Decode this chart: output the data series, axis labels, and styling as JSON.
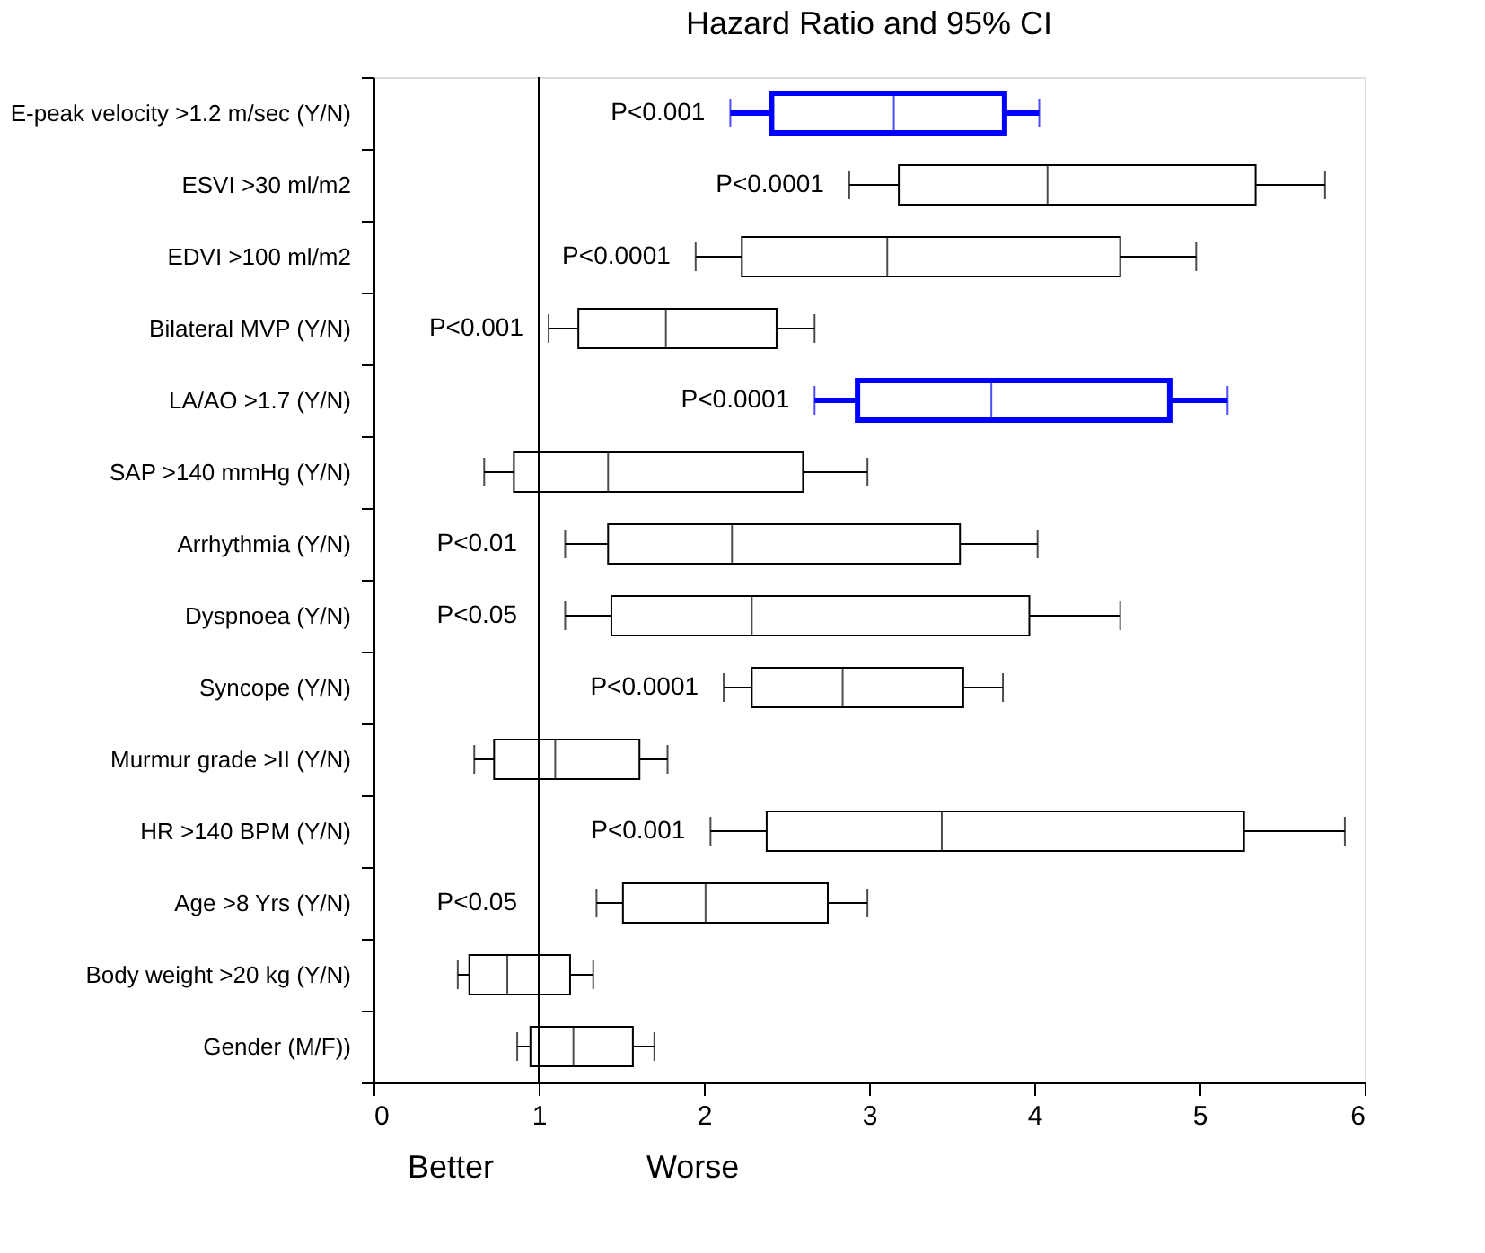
{
  "chart_data": {
    "type": "box",
    "orientation": "horizontal",
    "title": "Hazard Ratio and 95% CI",
    "categories": [
      "E-peak velocity >1.2 m/sec (Y/N)",
      "ESVI >30 ml/m2",
      "EDVI >100 ml/m2",
      "Bilateral MVP (Y/N)",
      "LA/AO >1.7 (Y/N)",
      "SAP >140 mmHg (Y/N)",
      "Arrhythmia (Y/N)",
      "Dyspnoea (Y/N)",
      "Syncope (Y/N)",
      "Murmur grade >II (Y/N)",
      "HR >140 BPM (Y/N)",
      "Age >8 Yrs (Y/N)",
      "Body weight >20 kg (Y/N)",
      "Gender (M/F))"
    ],
    "boxes": [
      {
        "low": 2.16,
        "q1": 2.41,
        "median": 3.15,
        "q3": 3.82,
        "high": 4.03
      },
      {
        "low": 2.88,
        "q1": 3.18,
        "median": 4.08,
        "q3": 5.34,
        "high": 5.76
      },
      {
        "low": 1.95,
        "q1": 2.23,
        "median": 3.11,
        "q3": 4.52,
        "high": 4.98
      },
      {
        "low": 1.06,
        "q1": 1.24,
        "median": 1.77,
        "q3": 2.44,
        "high": 2.67
      },
      {
        "low": 2.67,
        "q1": 2.93,
        "median": 3.74,
        "q3": 4.82,
        "high": 5.17
      },
      {
        "low": 0.67,
        "q1": 0.85,
        "median": 1.42,
        "q3": 2.6,
        "high": 2.99
      },
      {
        "low": 1.16,
        "q1": 1.42,
        "median": 2.17,
        "q3": 3.55,
        "high": 4.02
      },
      {
        "low": 1.16,
        "q1": 1.44,
        "median": 2.29,
        "q3": 3.97,
        "high": 4.52
      },
      {
        "low": 2.12,
        "q1": 2.29,
        "median": 2.84,
        "q3": 3.57,
        "high": 3.81
      },
      {
        "low": 0.61,
        "q1": 0.73,
        "median": 1.1,
        "q3": 1.61,
        "high": 1.78
      },
      {
        "low": 2.04,
        "q1": 2.38,
        "median": 3.44,
        "q3": 5.27,
        "high": 5.88
      },
      {
        "low": 1.35,
        "q1": 1.51,
        "median": 2.01,
        "q3": 2.75,
        "high": 2.99
      },
      {
        "low": 0.51,
        "q1": 0.58,
        "median": 0.81,
        "q3": 1.19,
        "high": 1.33
      },
      {
        "low": 0.87,
        "q1": 0.95,
        "median": 1.21,
        "q3": 1.57,
        "high": 1.7
      }
    ],
    "colors": [
      "#0000ff",
      "#000000",
      "#000000",
      "#000000",
      "#0000ff",
      "#000000",
      "#000000",
      "#000000",
      "#000000",
      "#000000",
      "#000000",
      "#000000",
      "#000000",
      "#000000"
    ],
    "value_labels": [
      "P<0.001",
      "P<0.0001",
      "P<0.0001",
      "P<0.001",
      "P<0.0001",
      null,
      "P<0.01",
      "P<0.05",
      "P<0.0001",
      null,
      "P<0.001",
      "P<0.05",
      null,
      null
    ],
    "xlim": [
      0,
      6
    ],
    "xticks": [
      0,
      1,
      2,
      3,
      4,
      5,
      6
    ],
    "grid": false,
    "ref_lines": [
      {
        "axis": "x",
        "value": 1,
        "color": "#000000"
      }
    ],
    "annotations": [
      "Better",
      "Worse"
    ]
  }
}
